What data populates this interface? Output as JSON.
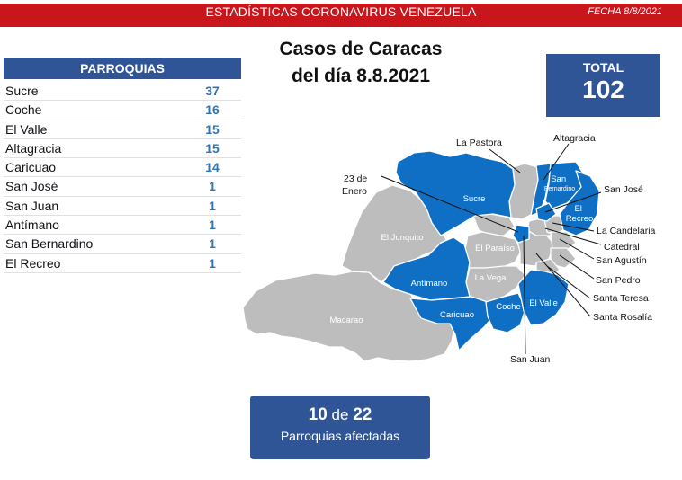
{
  "header": {
    "title": "ESTADÍSTICAS CORONAVIRUS VENEZUELA",
    "date": "FECHA 8/8/2021",
    "bar_color": "#c8161c"
  },
  "main_title": {
    "line1": "Casos de Caracas",
    "line2": "del día 8.8.2021"
  },
  "total": {
    "label": "TOTAL",
    "value": "102"
  },
  "table": {
    "header": "PARROQUIAS",
    "rows": [
      {
        "name": "Sucre",
        "count": "37"
      },
      {
        "name": "Coche",
        "count": "16"
      },
      {
        "name": "El Valle",
        "count": "15"
      },
      {
        "name": "Altagracia",
        "count": "15"
      },
      {
        "name": "Caricuao",
        "count": "14"
      },
      {
        "name": "San José",
        "count": "1"
      },
      {
        "name": "San Juan",
        "count": "1"
      },
      {
        "name": "Antímano",
        "count": "1"
      },
      {
        "name": "San Bernardino",
        "count": "1"
      },
      {
        "name": "El Recreo",
        "count": "1"
      }
    ]
  },
  "map": {
    "affected_color": "#0e6fc5",
    "unaffected_color": "#bdbdbd",
    "region_labels": {
      "sucre": "Sucre",
      "el_junquito": "El Junquito",
      "antimano": "Antímano",
      "la_vega": "La Vega",
      "el_paraiso": "El Paraíso",
      "macarao": "Macarao",
      "caricuao": "Caricuao",
      "coche": "Coche",
      "el_valle": "El Valle",
      "el_recreo": "El\nRecreo",
      "san_bernardino": "San\nBernardino"
    },
    "callouts": {
      "la_pastora": "La Pastora",
      "altagracia": "Altagracia",
      "veintitres_de_enero_1": "23 de",
      "veintitres_de_enero_2": "Enero",
      "san_jose": "San José",
      "la_candelaria": "La Candelaria",
      "catedral": "Catedral",
      "san_agustin": "San Agustín",
      "san_pedro": "San Pedro",
      "santa_teresa": "Santa Teresa",
      "santa_rosalia": "Santa Rosalía",
      "san_juan": "San Juan"
    }
  },
  "summary": {
    "affected": "10",
    "connector": "de",
    "total": "22",
    "caption": "Parroquias afectadas"
  }
}
